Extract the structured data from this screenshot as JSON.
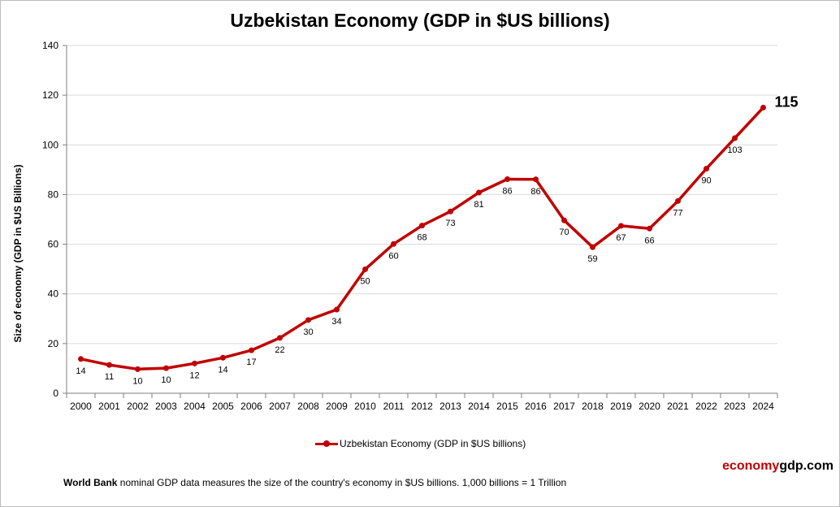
{
  "colors": {
    "series": "#c00000",
    "grid": "#d9d9d9",
    "axis": "#7f7f7f",
    "brand_accent": "#c00000"
  },
  "chart_data": {
    "type": "line",
    "title": "Uzbekistan Economy (GDP in $US billions)",
    "xlabel": "",
    "ylabel": "Size of economy (GDP in $US Billions)",
    "ylim": [
      0,
      140
    ],
    "yticks": [
      "0",
      "20",
      "40",
      "60",
      "80",
      "100",
      "120",
      "140"
    ],
    "grid": true,
    "legend_position": "bottom",
    "categories": [
      "2000",
      "2001",
      "2002",
      "2003",
      "2004",
      "2005",
      "2006",
      "2007",
      "2008",
      "2009",
      "2010",
      "2011",
      "2012",
      "2013",
      "2014",
      "2015",
      "2016",
      "2017",
      "2018",
      "2019",
      "2020",
      "2021",
      "2022",
      "2023",
      "2024"
    ],
    "series": [
      {
        "name": "Uzbekistan Economy (GDP in $US billions)",
        "values": [
          13.8,
          11.4,
          9.7,
          10.1,
          12.0,
          14.3,
          17.3,
          22.3,
          29.5,
          33.7,
          49.9,
          60.1,
          67.5,
          73.2,
          80.8,
          86.2,
          86.1,
          69.6,
          58.8,
          67.4,
          66.3,
          77.4,
          90.4,
          102.7,
          115.0
        ],
        "labels": [
          "14",
          "11",
          "10",
          "10",
          "12",
          "14",
          "17",
          "22",
          "30",
          "34",
          "50",
          "60",
          "68",
          "73",
          "81",
          "86",
          "86",
          "70",
          "59",
          "67",
          "66",
          "77",
          "90",
          "103",
          "115"
        ]
      }
    ]
  },
  "branding": {
    "part1": "economy",
    "part2": "gdp.com"
  },
  "footnote": {
    "source": "World Bank",
    "text": " nominal GDP data  measures the size of the country's economy in $US billions. 1,000 billions = 1 Trillion"
  }
}
